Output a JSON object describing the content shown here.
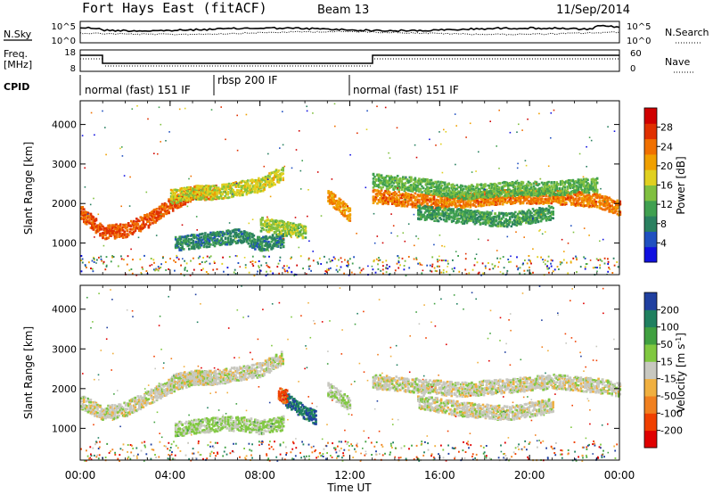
{
  "header": {
    "radar": "Fort Hays East (fitACF)",
    "beam": "Beam 13",
    "date": "11/Sep/2014"
  },
  "noise_panel": {
    "left_label": "N.Sky",
    "right_label": "N.Search",
    "left_ticks": [
      "10^5",
      "10^0"
    ],
    "right_ticks": [
      "10^5",
      "10^0"
    ]
  },
  "freq_panel": {
    "label_line1": "Freq.",
    "label_line2": "[MHz]",
    "right_label": "Nave",
    "left_ticks": [
      "18",
      "8"
    ],
    "right_ticks": [
      "60",
      "0"
    ],
    "cpid_label": "CPID",
    "cpid_segments": [
      {
        "label": "normal (fast) 151 IF",
        "start": 0,
        "end": 6
      },
      {
        "label": "rbsp 200 IF",
        "start": 6,
        "end": 12.7
      },
      {
        "label": "normal (fast) 151 IF",
        "start": 12.7,
        "end": 24
      }
    ]
  },
  "colors": {
    "power": [
      "#1010e0",
      "#2050c0",
      "#2a8060",
      "#40a050",
      "#80c040",
      "#e0d020",
      "#f0a000",
      "#f07000",
      "#e03000",
      "#d00000"
    ],
    "velocity": [
      "#e00000",
      "#f04000",
      "#f08020",
      "#f0b040",
      "#c8c8c0",
      "#80c840",
      "#40a040",
      "#208060",
      "#2040a0"
    ]
  },
  "chart_data": [
    {
      "type": "heatmap",
      "name": "power",
      "ylabel": "Slant Range [km]",
      "yticks": [
        1000,
        2000,
        3000,
        4000
      ],
      "ylim": [
        200,
        4600
      ],
      "xlim": [
        0,
        24
      ],
      "colorbar": {
        "label": "Power [dB]",
        "ticks": [
          "4",
          "8",
          "12",
          "16",
          "20",
          "24",
          "28"
        ],
        "range": [
          0,
          30
        ]
      },
      "bands": [
        {
          "x": [
            0.0,
            1.0,
            2.0,
            3.0,
            4.0,
            5.0,
            6.0
          ],
          "y": [
            1800,
            1300,
            1350,
            1600,
            2000,
            2300,
            2300
          ],
          "value": 24
        },
        {
          "x": [
            4.0,
            5.0,
            6.0,
            7.0,
            8.0,
            9.0
          ],
          "y": [
            2200,
            2300,
            2300,
            2400,
            2500,
            2800
          ],
          "value": 16
        },
        {
          "x": [
            4.2,
            5.5,
            7.0,
            8.0,
            9.0
          ],
          "y": [
            1000,
            1100,
            1200,
            1000,
            1100
          ],
          "value": 8
        },
        {
          "x": [
            8.0,
            9.0,
            10.0
          ],
          "y": [
            1500,
            1400,
            1300
          ],
          "value": 14
        },
        {
          "x": [
            11.0,
            11.5,
            12.0
          ],
          "y": [
            2200,
            2000,
            1700
          ],
          "value": 20
        },
        {
          "x": [
            13.0,
            15.0,
            17.0,
            19.0,
            21.0,
            23.0,
            24.0
          ],
          "y": [
            2200,
            2100,
            2100,
            2200,
            2200,
            2100,
            1900
          ],
          "value": 22
        },
        {
          "x": [
            13.0,
            15.0,
            17.0,
            19.0,
            21.0,
            23.0
          ],
          "y": [
            2600,
            2500,
            2300,
            2400,
            2400,
            2500
          ],
          "value": 12
        },
        {
          "x": [
            15.0,
            17.0,
            19.0,
            21.0
          ],
          "y": [
            1800,
            1700,
            1600,
            1800
          ],
          "value": 10
        }
      ]
    },
    {
      "type": "heatmap",
      "name": "velocity",
      "ylabel": "Slant Range [km]",
      "yticks": [
        1000,
        2000,
        3000,
        4000
      ],
      "ylim": [
        200,
        4600
      ],
      "xlim": [
        0,
        24
      ],
      "colorbar": {
        "label": "Velocity [m s",
        "label_sup": "-1",
        "label_end": "]",
        "ticks": [
          "-200",
          "-100",
          "-50",
          "-15",
          "15",
          "50",
          "100",
          "200"
        ],
        "range": [
          -250,
          250
        ]
      },
      "bands": [
        {
          "x": [
            0.0,
            1.0,
            2.0,
            3.0,
            4.0,
            5.0,
            6.0
          ],
          "y": [
            1700,
            1400,
            1500,
            1800,
            2100,
            2300,
            2300
          ],
          "value": 0
        },
        {
          "x": [
            4.0,
            5.0,
            6.0,
            7.0,
            8.0,
            9.0
          ],
          "y": [
            2200,
            2300,
            2300,
            2400,
            2500,
            2800
          ],
          "value": 0
        },
        {
          "x": [
            4.2,
            5.5,
            7.0,
            8.0,
            9.0
          ],
          "y": [
            1000,
            1100,
            1150,
            1050,
            1150
          ],
          "value": 40
        },
        {
          "x": [
            9.0,
            9.5,
            10.0,
            10.5
          ],
          "y": [
            1800,
            1600,
            1400,
            1300
          ],
          "value": 180
        },
        {
          "x": [
            8.8,
            9.2
          ],
          "y": [
            1900,
            1800
          ],
          "value": -160
        },
        {
          "x": [
            11.0,
            12.0
          ],
          "y": [
            2000,
            1600
          ],
          "value": 30
        },
        {
          "x": [
            13.0,
            15.0,
            17.0,
            19.0,
            21.0,
            23.0,
            24.0
          ],
          "y": [
            2200,
            2100,
            2000,
            2100,
            2200,
            2100,
            2000
          ],
          "value": 0
        },
        {
          "x": [
            15.0,
            17.0,
            19.0,
            21.0
          ],
          "y": [
            1700,
            1500,
            1400,
            1600
          ],
          "value": 0
        }
      ]
    }
  ],
  "xaxis": {
    "label": "Time UT",
    "ticks": [
      "00:00",
      "04:00",
      "08:00",
      "12:00",
      "16:00",
      "20:00",
      "00:00"
    ]
  }
}
